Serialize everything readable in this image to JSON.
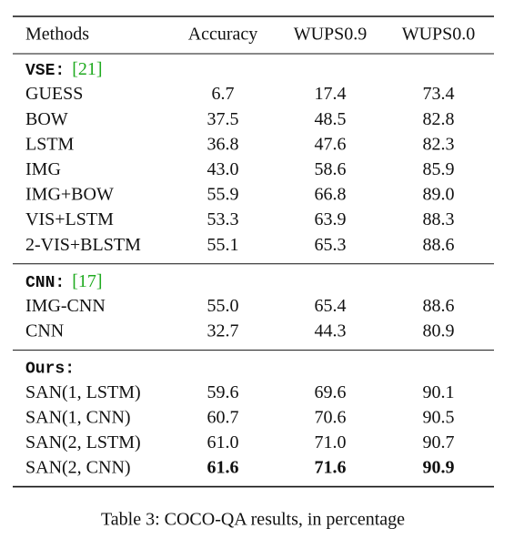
{
  "table": {
    "columns": [
      "Methods",
      "Accuracy",
      "WUPS0.9",
      "WUPS0.0"
    ],
    "groups": [
      {
        "label": "VSE:",
        "citation": "[21]",
        "rows": [
          {
            "method": "GUESS",
            "values": [
              "6.7",
              "17.4",
              "73.4"
            ]
          },
          {
            "method": "BOW",
            "values": [
              "37.5",
              "48.5",
              "82.8"
            ]
          },
          {
            "method": "LSTM",
            "values": [
              "36.8",
              "47.6",
              "82.3"
            ]
          },
          {
            "method": "IMG",
            "values": [
              "43.0",
              "58.6",
              "85.9"
            ]
          },
          {
            "method": "IMG+BOW",
            "values": [
              "55.9",
              "66.8",
              "89.0"
            ]
          },
          {
            "method": "VIS+LSTM",
            "values": [
              "53.3",
              "63.9",
              "88.3"
            ]
          },
          {
            "method": "2-VIS+BLSTM",
            "values": [
              "55.1",
              "65.3",
              "88.6"
            ]
          }
        ]
      },
      {
        "label": "CNN:",
        "citation": "[17]",
        "rows": [
          {
            "method": "IMG-CNN",
            "values": [
              "55.0",
              "65.4",
              "88.6"
            ]
          },
          {
            "method": "CNN",
            "values": [
              "32.7",
              "44.3",
              "80.9"
            ]
          }
        ]
      },
      {
        "label": "Ours:",
        "rows": [
          {
            "method": "SAN(1, LSTM)",
            "values": [
              "59.6",
              "69.6",
              "90.1"
            ]
          },
          {
            "method": "SAN(1, CNN)",
            "values": [
              "60.7",
              "70.6",
              "90.5"
            ]
          },
          {
            "method": "SAN(2, LSTM)",
            "values": [
              "61.0",
              "71.0",
              "90.7"
            ]
          },
          {
            "method": "SAN(2, CNN)",
            "values": [
              "61.6",
              "71.6",
              "90.9"
            ],
            "bold": true
          }
        ]
      }
    ]
  },
  "caption": "Table 3: COCO-QA results, in percentage"
}
